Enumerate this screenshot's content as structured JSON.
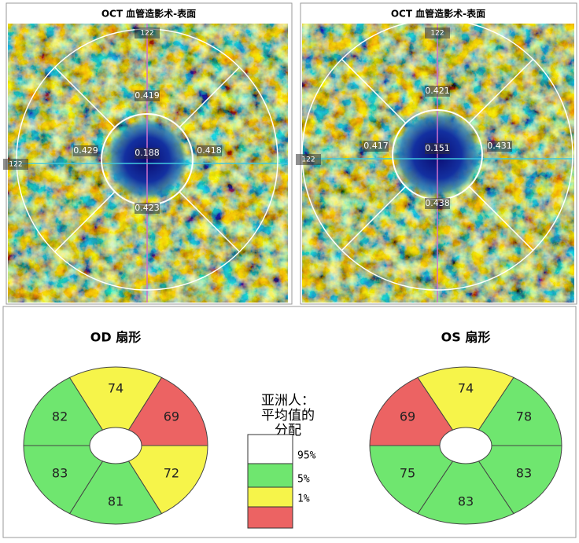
{
  "panels": [
    {
      "title": "OCT 血管造影术-表面",
      "scale_labels": [
        "122",
        "122"
      ],
      "labels": [
        "0.188",
        "0.419",
        "0.423",
        "0.429",
        "0.418"
      ]
    },
    {
      "title": "OCT 血管造影术-表面",
      "scale_labels": [
        "122",
        "122"
      ],
      "labels": [
        "0.151",
        "0.421",
        "0.438",
        "0.417",
        "0.431"
      ]
    }
  ],
  "sectors": [
    {
      "title": "OD 扇形",
      "values": [
        82,
        74,
        69,
        72,
        81,
        83
      ],
      "colors": [
        "#6fe66f",
        "#f6f44a",
        "#ec6363",
        "#f6f44a",
        "#6fe66f",
        "#6fe66f"
      ]
    },
    {
      "title": "OS 扇形",
      "values": [
        69,
        74,
        78,
        83,
        83,
        75
      ],
      "colors": [
        "#ec6363",
        "#f6f44a",
        "#6fe66f",
        "#6fe66f",
        "#6fe66f",
        "#6fe66f"
      ]
    }
  ],
  "legend": {
    "title": [
      "亚洲人：",
      "平均值的",
      "分配"
    ],
    "colors": [
      "#ffffff",
      "#6fe66f",
      "#f6f44a",
      "#ec6363"
    ],
    "labels": [
      "95%",
      "5%",
      "1%"
    ]
  }
}
